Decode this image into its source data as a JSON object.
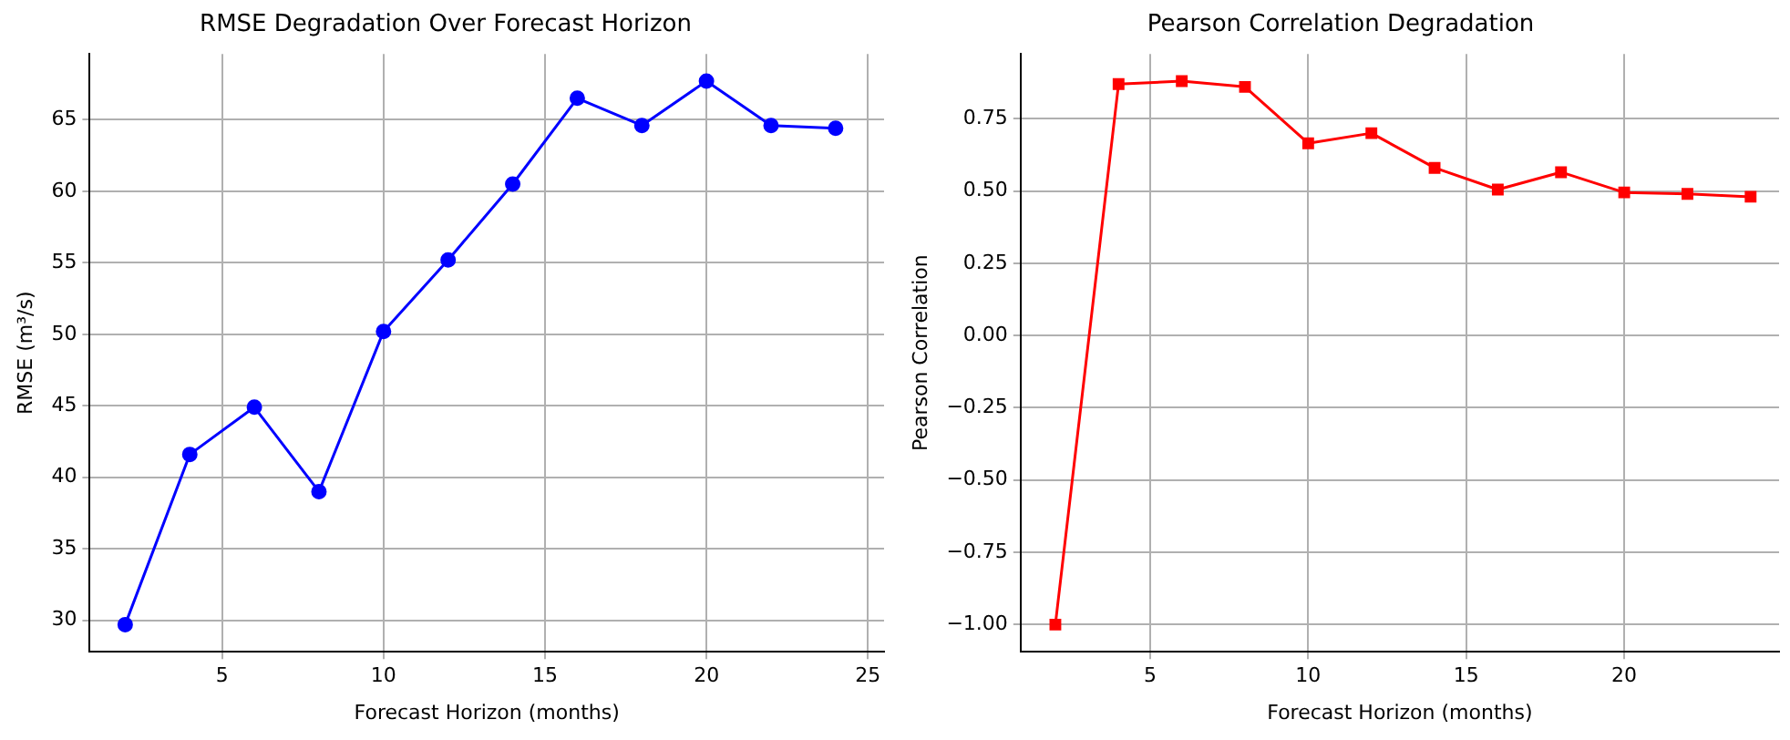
{
  "chart_data": [
    {
      "type": "line",
      "title": "RMSE Degradation Over Forecast Horizon",
      "xlabel": "Forecast Horizon (months)",
      "ylabel": "RMSE (m³/s)",
      "x": [
        2,
        4,
        6,
        8,
        10,
        12,
        14,
        16,
        18,
        20,
        22,
        24
      ],
      "series": [
        {
          "color": "#0000ff",
          "values": [
            29.7,
            41.6,
            44.9,
            39.0,
            50.2,
            55.2,
            60.5,
            66.5,
            64.6,
            67.7,
            64.6,
            64.4
          ]
        }
      ],
      "xlim": [
        0.9,
        25.5
      ],
      "ylim": [
        27.8,
        69.6
      ],
      "xticks": [
        5,
        10,
        15,
        20,
        25
      ],
      "yticks": [
        30,
        35,
        40,
        45,
        50,
        55,
        60,
        65
      ],
      "grid": true,
      "marker": "circle"
    },
    {
      "type": "line",
      "title": "Pearson Correlation Degradation",
      "xlabel": "Forecast Horizon (months)",
      "ylabel": "Pearson Correlation",
      "x": [
        2,
        4,
        6,
        8,
        10,
        12,
        14,
        16,
        18,
        20,
        22,
        24
      ],
      "series": [
        {
          "color": "#ff0000",
          "values": [
            -1.0,
            0.87,
            0.88,
            0.86,
            0.665,
            0.7,
            0.58,
            0.505,
            0.565,
            0.495,
            0.49,
            0.48
          ]
        }
      ],
      "xlim": [
        0.9,
        24.9
      ],
      "ylim": [
        -1.094,
        0.974
      ],
      "xticks": [
        5,
        10,
        15,
        20
      ],
      "yticks": [
        {
          "value": -1,
          "label": "−1.00"
        },
        {
          "value": -0.75,
          "label": "−0.75"
        },
        {
          "value": -0.5,
          "label": "−0.50"
        },
        {
          "value": -0.25,
          "label": "−0.25"
        },
        {
          "value": 0,
          "label": "0.00"
        },
        {
          "value": 0.25,
          "label": "0.25"
        },
        {
          "value": 0.5,
          "label": "0.50"
        },
        {
          "value": 0.75,
          "label": "0.75"
        }
      ],
      "grid": true,
      "marker": "square"
    }
  ]
}
